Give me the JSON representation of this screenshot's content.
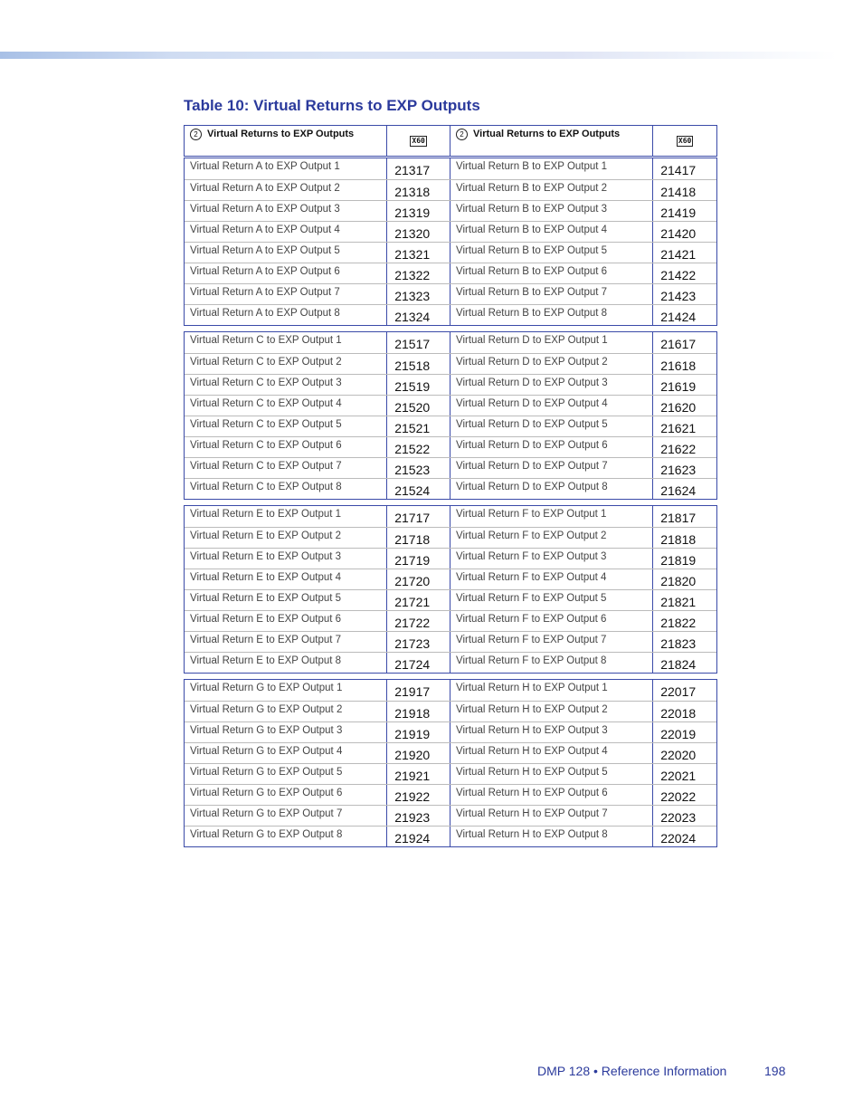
{
  "title": "Table 10:  Virtual Returns to EXP Outputs",
  "header": {
    "circle_num": "2",
    "col_label": "Virtual Returns to EXP Outputs",
    "x60_label": "X60"
  },
  "groups": [
    {
      "left": "A",
      "left_base": 21317,
      "right": "B",
      "right_base": 21417
    },
    {
      "left": "C",
      "left_base": 21517,
      "right": "D",
      "right_base": 21617
    },
    {
      "left": "E",
      "left_base": 21717,
      "right": "F",
      "right_base": 21817
    },
    {
      "left": "G",
      "left_base": 21917,
      "right": "H",
      "right_base": 22017
    }
  ],
  "row_template": "Virtual Return {r} to EXP Output {n}",
  "footer": {
    "text": "DMP 128 • Reference Information",
    "page": "198"
  },
  "colors": {
    "accent": "#2b3a9c",
    "border": "#3a4aa8"
  }
}
